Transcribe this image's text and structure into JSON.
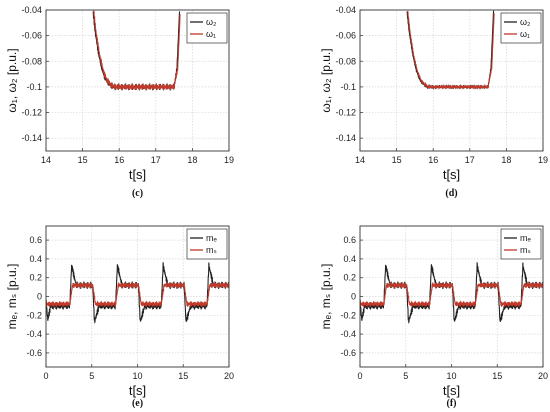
{
  "chart_data": [
    {
      "panel_label": "(c)",
      "type": "line",
      "title": "",
      "xlabel": "t[s]",
      "ylabel": "ω₁, ω₂ [p.u.]",
      "xlim": [
        14,
        19
      ],
      "ylim": [
        -0.15,
        -0.04
      ],
      "xticks": [
        "14",
        "15",
        "16",
        "17",
        "18",
        "19"
      ],
      "yticks": [
        "-0.04",
        "-0.06",
        "-0.08",
        "-0.1",
        "-0.12",
        "-0.14"
      ],
      "grid": true,
      "legend_position": "top-right",
      "series": [
        {
          "name": "ω₂",
          "color": "#222222",
          "x": [
            15.28,
            15.35,
            15.45,
            15.55,
            15.65,
            15.75,
            15.85,
            16.0,
            16.5,
            17.0,
            17.5,
            17.58,
            17.65
          ],
          "y": [
            -0.04,
            -0.058,
            -0.076,
            -0.088,
            -0.095,
            -0.098,
            -0.1,
            -0.1,
            -0.1,
            -0.1,
            -0.1,
            -0.085,
            -0.04
          ],
          "ripple": 0.0028
        },
        {
          "name": "ω₁",
          "color": "#c0392b",
          "x": [
            15.3,
            15.37,
            15.47,
            15.57,
            15.67,
            15.77,
            15.87,
            16.0,
            16.5,
            17.0,
            17.5,
            17.6,
            17.67
          ],
          "y": [
            -0.04,
            -0.058,
            -0.076,
            -0.088,
            -0.095,
            -0.098,
            -0.1,
            -0.1,
            -0.1,
            -0.1,
            -0.1,
            -0.085,
            -0.04
          ],
          "ripple": 0.0025
        }
      ]
    },
    {
      "panel_label": "(d)",
      "type": "line",
      "title": "",
      "xlabel": "t[s]",
      "ylabel": "ω₁, ω₂ [p.u.]",
      "xlim": [
        14,
        19
      ],
      "ylim": [
        -0.15,
        -0.04
      ],
      "xticks": [
        "14",
        "15",
        "16",
        "17",
        "18",
        "19"
      ],
      "yticks": [
        "-0.04",
        "-0.06",
        "-0.08",
        "-0.1",
        "-0.12",
        "-0.14"
      ],
      "grid": true,
      "legend_position": "top-right",
      "series": [
        {
          "name": "ω₂",
          "color": "#222222",
          "x": [
            15.28,
            15.35,
            15.45,
            15.55,
            15.65,
            15.75,
            15.85,
            16.0,
            16.5,
            17.0,
            17.5,
            17.58,
            17.65
          ],
          "y": [
            -0.04,
            -0.058,
            -0.076,
            -0.088,
            -0.095,
            -0.098,
            -0.1,
            -0.1,
            -0.1,
            -0.1,
            -0.1,
            -0.085,
            -0.04
          ],
          "ripple": 0.0015
        },
        {
          "name": "ω₁",
          "color": "#c0392b",
          "x": [
            15.3,
            15.37,
            15.47,
            15.57,
            15.67,
            15.77,
            15.87,
            16.0,
            16.5,
            17.0,
            17.5,
            17.6,
            17.67
          ],
          "y": [
            -0.04,
            -0.058,
            -0.076,
            -0.088,
            -0.095,
            -0.098,
            -0.1,
            -0.1,
            -0.1,
            -0.1,
            -0.1,
            -0.085,
            -0.04
          ],
          "ripple": 0.0012
        }
      ]
    },
    {
      "panel_label": "(e)",
      "type": "line",
      "title": "",
      "xlabel": "t[s]",
      "ylabel": "mₑ, mₛ [p.u.]",
      "xlim": [
        0,
        20
      ],
      "ylim": [
        -0.75,
        0.75
      ],
      "xticks": [
        "0",
        "5",
        "10",
        "15",
        "20"
      ],
      "yticks": [
        "0.6",
        "0.4",
        "0.2",
        "0",
        "-0.2",
        "-0.4",
        "-0.6"
      ],
      "grid": true,
      "legend_position": "top-right",
      "series": [
        {
          "name": "mₑ",
          "color": "#222222",
          "x": [
            0,
            0.2,
            0.5,
            2.6,
            2.8,
            3.3,
            5.1,
            5.3,
            5.8,
            7.6,
            7.8,
            8.3,
            10.1,
            10.3,
            10.8,
            12.6,
            12.8,
            13.3,
            15.1,
            15.3,
            15.8,
            17.6,
            17.8,
            18.3,
            20
          ],
          "y": [
            -0.05,
            -0.25,
            -0.1,
            -0.1,
            0.33,
            0.12,
            0.12,
            -0.27,
            -0.1,
            -0.1,
            0.33,
            0.12,
            0.12,
            -0.27,
            -0.1,
            -0.1,
            0.33,
            0.12,
            0.12,
            -0.27,
            -0.1,
            -0.1,
            0.33,
            0.12,
            0.12
          ],
          "ripple": 0.04
        },
        {
          "name": "mₛ",
          "color": "#c0392b",
          "x": [
            0,
            0.5,
            2.6,
            2.9,
            5.1,
            5.4,
            7.6,
            7.9,
            10.1,
            10.4,
            12.6,
            12.9,
            15.1,
            15.4,
            17.6,
            17.9,
            20
          ],
          "y": [
            -0.08,
            -0.08,
            -0.08,
            0.12,
            0.12,
            -0.08,
            -0.08,
            0.12,
            0.12,
            -0.08,
            -0.08,
            0.12,
            0.12,
            -0.08,
            -0.08,
            0.12,
            0.12
          ],
          "ripple": 0.03
        }
      ]
    },
    {
      "panel_label": "(f)",
      "type": "line",
      "title": "",
      "xlabel": "t[s]",
      "ylabel": "mₑ, mₛ [p.u.]",
      "xlim": [
        0,
        20
      ],
      "ylim": [
        -0.75,
        0.75
      ],
      "xticks": [
        "0",
        "5",
        "10",
        "15",
        "20"
      ],
      "yticks": [
        "0.6",
        "0.4",
        "0.2",
        "0",
        "-0.2",
        "-0.4",
        "-0.6"
      ],
      "grid": true,
      "legend_position": "top-right",
      "series": [
        {
          "name": "mₑ",
          "color": "#222222",
          "x": [
            0,
            0.2,
            0.5,
            2.6,
            2.8,
            3.3,
            5.1,
            5.3,
            5.8,
            7.6,
            7.8,
            8.3,
            10.1,
            10.3,
            10.8,
            12.6,
            12.8,
            13.3,
            15.1,
            15.3,
            15.8,
            17.6,
            17.8,
            18.3,
            20
          ],
          "y": [
            -0.05,
            -0.25,
            -0.1,
            -0.1,
            0.33,
            0.12,
            0.12,
            -0.27,
            -0.1,
            -0.1,
            0.33,
            0.12,
            0.12,
            -0.27,
            -0.1,
            -0.1,
            0.33,
            0.12,
            0.12,
            -0.27,
            -0.1,
            -0.1,
            0.33,
            0.12,
            0.12
          ],
          "ripple": 0.04
        },
        {
          "name": "mₛ",
          "color": "#c0392b",
          "x": [
            0,
            0.5,
            2.6,
            2.9,
            5.1,
            5.4,
            7.6,
            7.9,
            10.1,
            10.4,
            12.6,
            12.9,
            15.1,
            15.4,
            17.6,
            17.9,
            20
          ],
          "y": [
            -0.08,
            -0.08,
            -0.08,
            0.12,
            0.12,
            -0.08,
            -0.08,
            0.12,
            0.12,
            -0.08,
            -0.08,
            0.12,
            0.12,
            -0.08,
            -0.08,
            0.12,
            0.12
          ],
          "ripple": 0.03
        }
      ]
    }
  ]
}
